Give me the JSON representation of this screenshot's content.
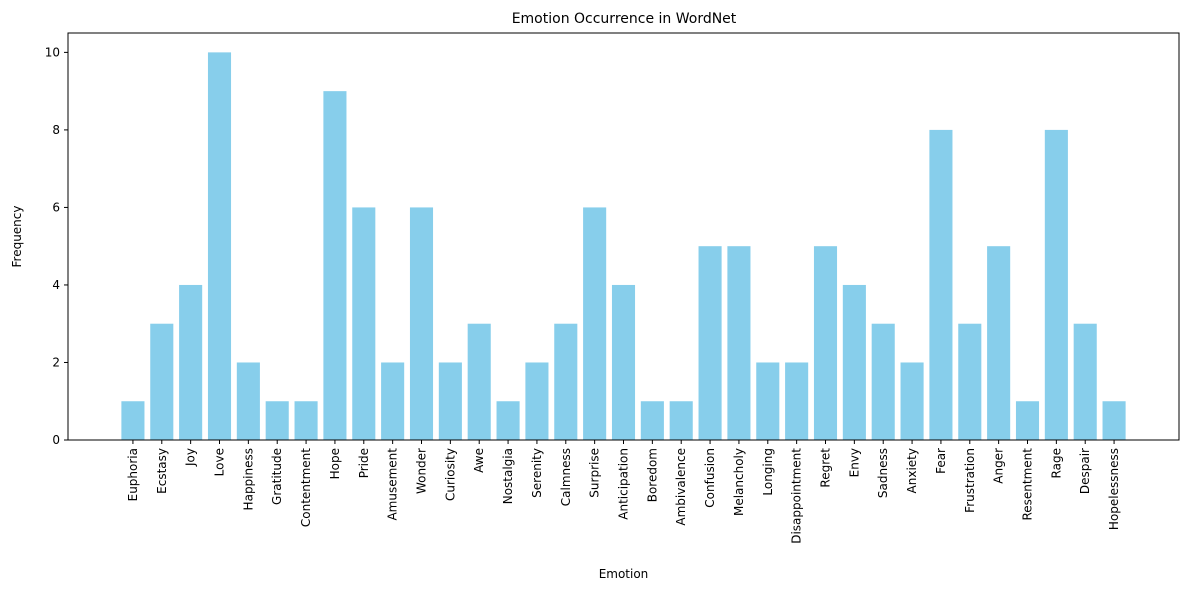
{
  "chart_data": {
    "type": "bar",
    "title": "Emotion Occurrence in WordNet",
    "xlabel": "Emotion",
    "ylabel": "Frequency",
    "ylim": [
      0,
      10.5
    ],
    "yticks": [
      0,
      2,
      4,
      6,
      8,
      10
    ],
    "bar_color": "#87CEEB",
    "grid": false,
    "categories": [
      "Euphoria",
      "Ecstasy",
      "Joy",
      "Love",
      "Happiness",
      "Gratitude",
      "Contentment",
      "Hope",
      "Pride",
      "Amusement",
      "Wonder",
      "Curiosity",
      "Awe",
      "Nostalgia",
      "Serenity",
      "Calmness",
      "Surprise",
      "Anticipation",
      "Boredom",
      "Ambivalence",
      "Confusion",
      "Melancholy",
      "Longing",
      "Disappointment",
      "Regret",
      "Envy",
      "Sadness",
      "Anxiety",
      "Fear",
      "Frustration",
      "Anger",
      "Resentment",
      "Rage",
      "Despair",
      "Hopelessness"
    ],
    "values": [
      1,
      3,
      4,
      10,
      2,
      1,
      1,
      9,
      6,
      2,
      6,
      2,
      3,
      1,
      2,
      3,
      6,
      4,
      1,
      1,
      5,
      5,
      2,
      2,
      5,
      4,
      3,
      2,
      8,
      3,
      5,
      1,
      8,
      3,
      1
    ]
  }
}
